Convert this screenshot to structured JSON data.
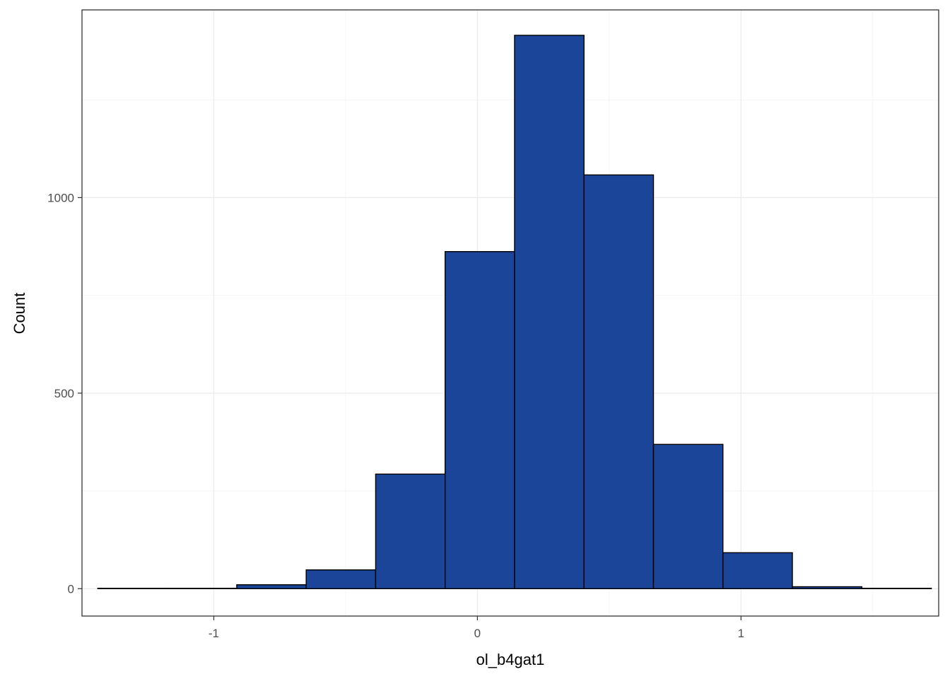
{
  "chart_data": {
    "type": "bar",
    "subtype": "histogram",
    "title": "",
    "xlabel": "ol_b4gat1",
    "ylabel": "Count",
    "xlim": [
      -1.5,
      1.75
    ],
    "ylim": [
      -70,
      1480
    ],
    "x_ticks": [
      -1,
      0,
      1
    ],
    "x_tick_labels": [
      "-1",
      "0",
      "1"
    ],
    "y_ticks": [
      0,
      500,
      1000
    ],
    "y_tick_labels": [
      "0",
      "500",
      "1000"
    ],
    "grid": true,
    "bin_width": 0.2635,
    "bin_edges": [
      -1.44,
      -1.1765,
      -0.913,
      -0.6495,
      -0.386,
      -0.1225,
      0.141,
      0.4045,
      0.668,
      0.9315,
      1.195,
      1.4585,
      1.722
    ],
    "values": [
      1,
      1,
      10,
      48,
      293,
      862,
      1415,
      1058,
      369,
      92,
      5,
      1
    ],
    "bar_color": "#1a4599",
    "bar_outline": "#000000"
  }
}
